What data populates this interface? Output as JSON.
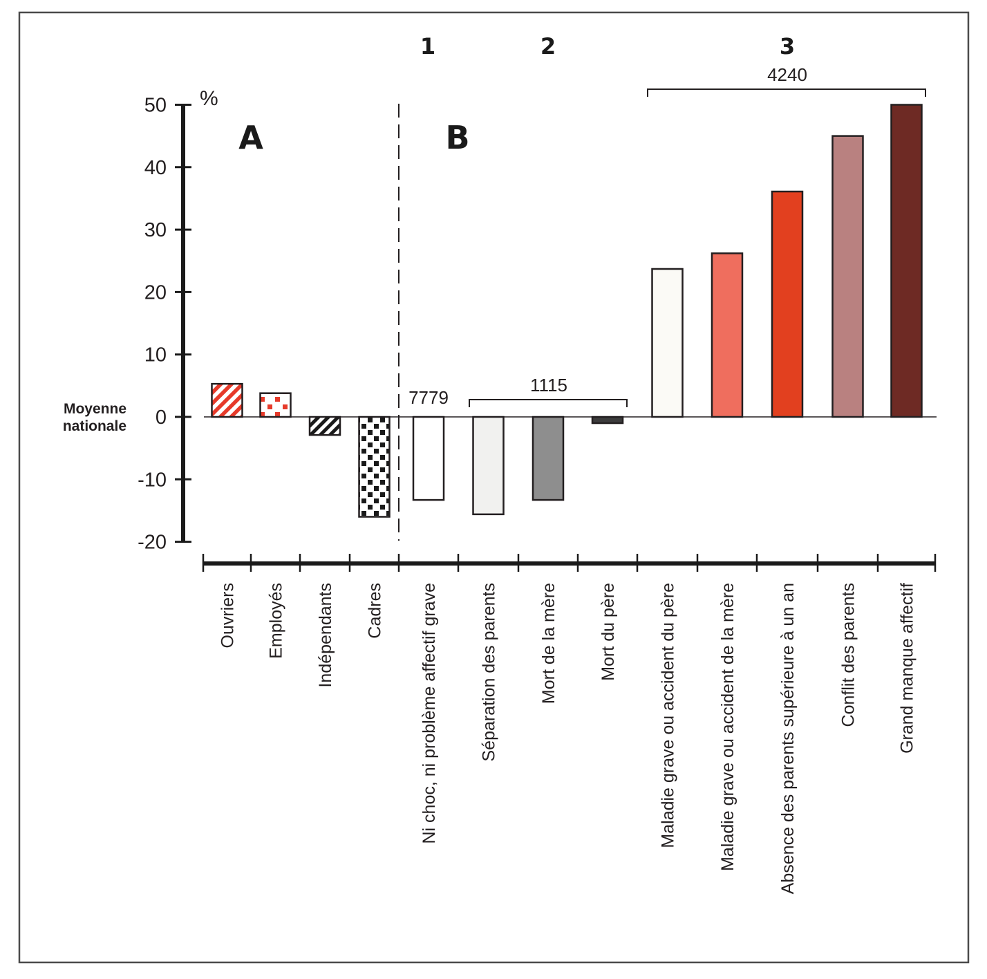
{
  "chart_data": {
    "type": "bar",
    "title": "",
    "xlabel": "",
    "ylabel": "%",
    "ylim": [
      -20,
      50
    ],
    "yticks": [
      50,
      40,
      30,
      20,
      10,
      0,
      -10,
      -20
    ],
    "grid": false,
    "reference_line": {
      "value": 0,
      "label_line1": "Moyenne",
      "label_line2": "nationale"
    },
    "sections": [
      {
        "label": "A",
        "categories": [
          0,
          1,
          2,
          3
        ]
      },
      {
        "label": "B",
        "categories": [
          4,
          5,
          6,
          7,
          8,
          9,
          10,
          11,
          12
        ]
      }
    ],
    "groups": [
      {
        "label": "1",
        "count": "7779",
        "categories": [
          4
        ],
        "bracket": false
      },
      {
        "label": "2",
        "count": "1115",
        "categories": [
          5,
          6,
          7
        ],
        "bracket": true
      },
      {
        "label": "3",
        "count": "4240",
        "categories": [
          8,
          9,
          10,
          11,
          12
        ],
        "bracket": true
      }
    ],
    "categories": [
      "Ouvriers",
      "Employés",
      "Indépendants",
      "Cadres",
      "Ni choc, ni problème affectif grave",
      "Séparation des parents",
      "Mort de la mère",
      "Mort du père",
      "Maladie grave ou accident du père",
      "Maladie grave ou accident de la mère",
      "Absence des parents supérieure à un an",
      "Conflit des parents",
      "Grand manque affectif"
    ],
    "values": [
      5.3,
      3.8,
      -2.9,
      -16,
      -13.3,
      -15.6,
      -13.3,
      -1,
      23.7,
      26.2,
      36.1,
      45,
      50
    ],
    "bar_styles": [
      {
        "pattern": "diagonal-stripes",
        "color": "#e63a2a"
      },
      {
        "pattern": "checker-dots",
        "color": "#e63a2a"
      },
      {
        "pattern": "diagonal-stripes",
        "color": "#1a1a1a"
      },
      {
        "pattern": "checker-dots",
        "color": "#1a1a1a"
      },
      {
        "pattern": "solid",
        "color": "#ffffff"
      },
      {
        "pattern": "solid",
        "color": "#f1f1ef"
      },
      {
        "pattern": "solid",
        "color": "#8e8e8e"
      },
      {
        "pattern": "solid",
        "color": "#3c3c3c"
      },
      {
        "pattern": "solid",
        "color": "#fbfaf6"
      },
      {
        "pattern": "solid",
        "color": "#ef6e5e"
      },
      {
        "pattern": "solid",
        "color": "#e2401f"
      },
      {
        "pattern": "solid",
        "color": "#b98180"
      },
      {
        "pattern": "solid",
        "color": "#6e2a24"
      }
    ]
  }
}
